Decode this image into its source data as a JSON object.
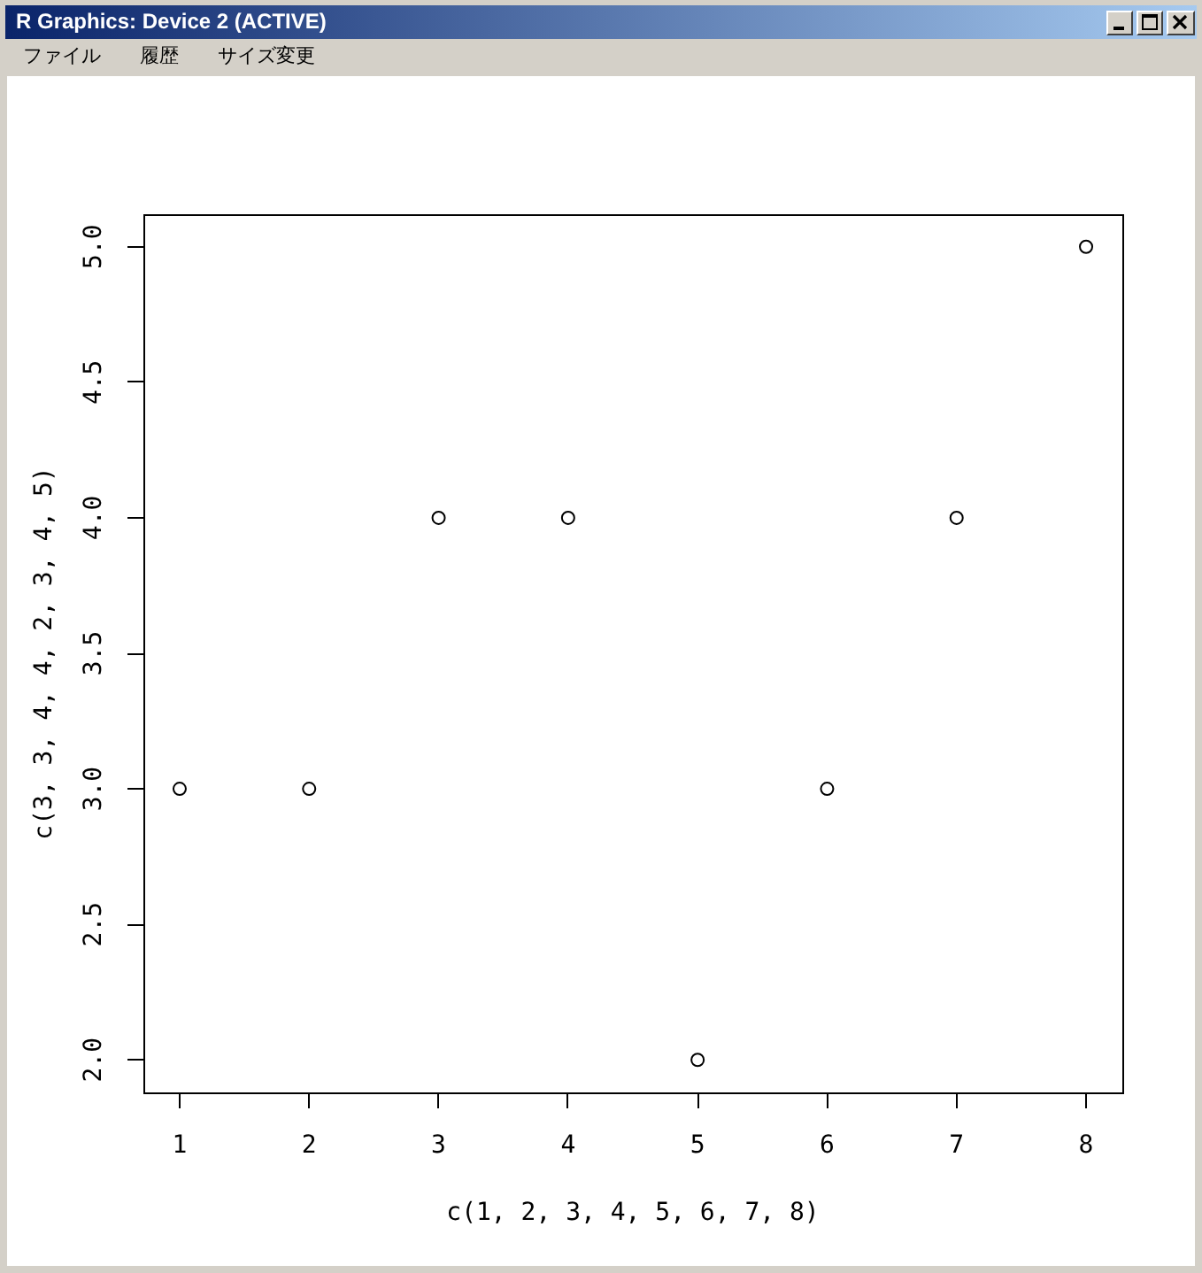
{
  "chart_data": {
    "type": "scatter",
    "xlabel": "c(1, 2, 3, 4, 5, 6, 7, 8)",
    "ylabel": "c(3, 3, 4, 4, 2, 3, 4, 5)",
    "x": [
      1,
      2,
      3,
      4,
      5,
      6,
      7,
      8
    ],
    "values": [
      3,
      3,
      4,
      4,
      2,
      3,
      4,
      5
    ],
    "color": "#000000",
    "marker": "circle",
    "xlim": [
      0.72,
      8.28
    ],
    "ylim": [
      1.88,
      5.12
    ],
    "xticks": [
      1,
      2,
      3,
      4,
      5,
      6,
      7,
      8
    ],
    "yticks": [
      {
        "value": 2,
        "label": "2.0"
      },
      {
        "value": 2.5,
        "label": "2.5"
      },
      {
        "value": 3,
        "label": "3.0"
      },
      {
        "value": 3.5,
        "label": "3.5"
      },
      {
        "value": 4,
        "label": "4.0"
      },
      {
        "value": 4.5,
        "label": "4.5"
      },
      {
        "value": 5,
        "label": "5.0"
      }
    ],
    "annotations": [
      "R Graphics: Device 2 (ACTIVE)",
      "ファイル",
      "履歴",
      "サイズ変更"
    ]
  }
}
